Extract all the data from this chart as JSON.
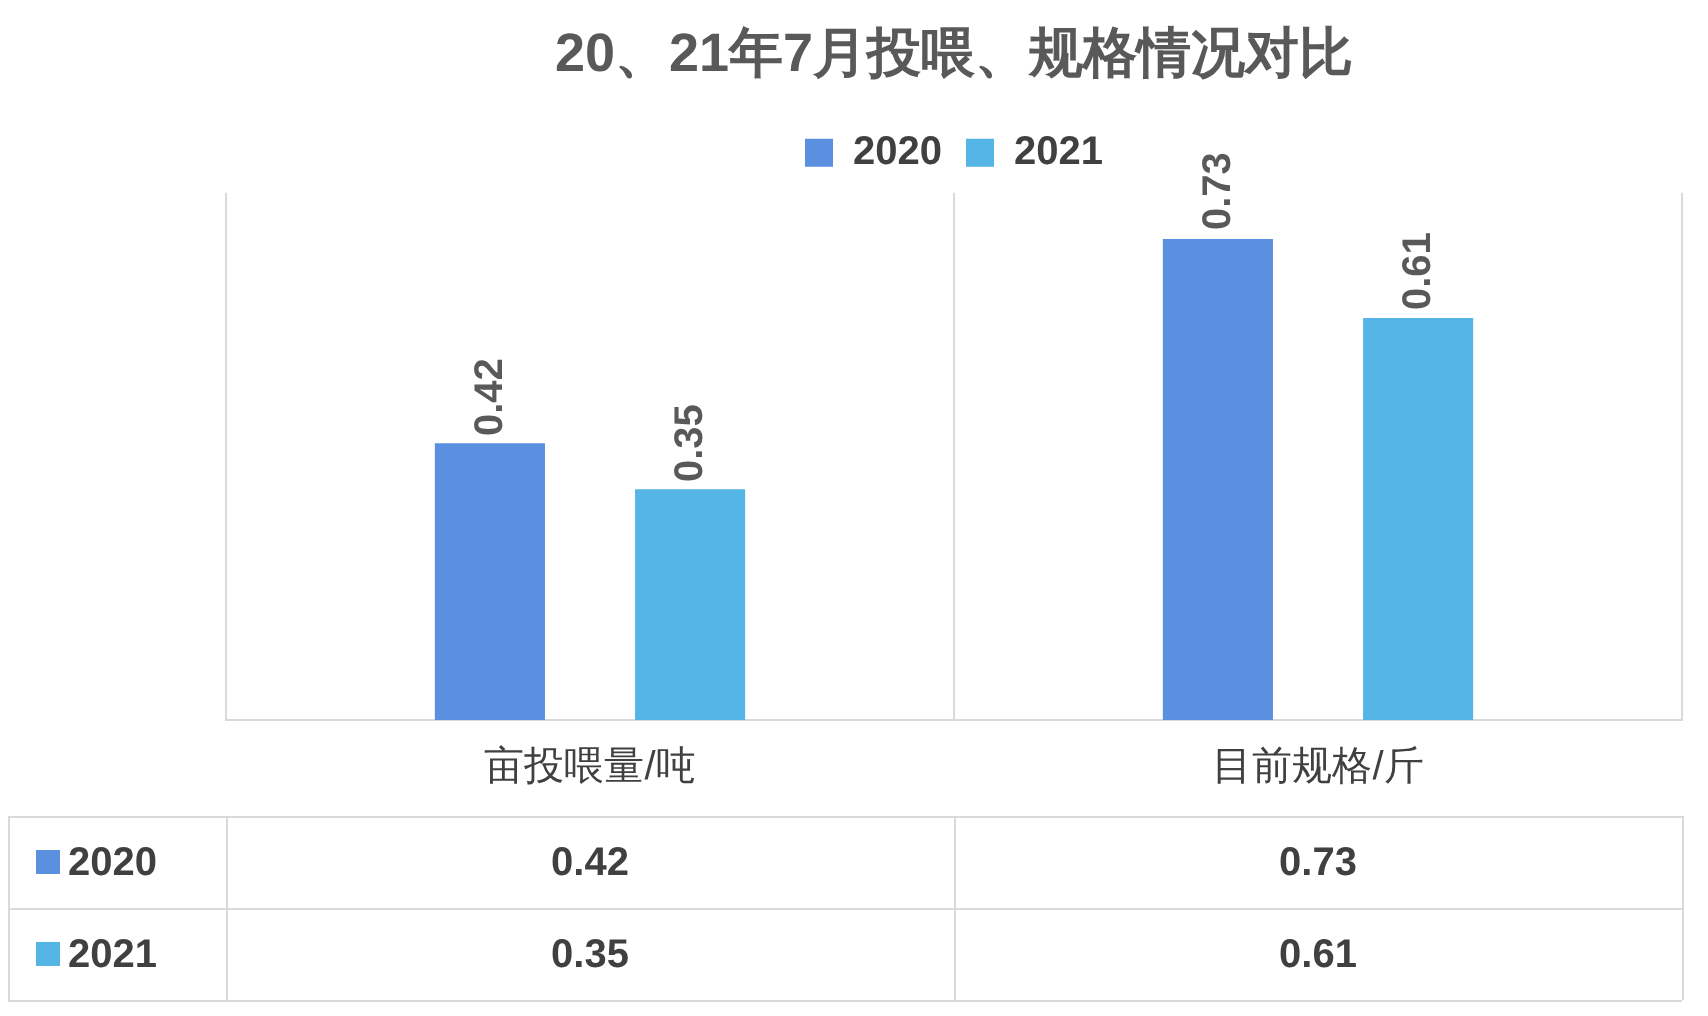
{
  "chart_data": {
    "type": "bar",
    "title": "20、21年7月投喂、规格情况对比",
    "categories": [
      "亩投喂量/吨",
      "目前规格/斤"
    ],
    "series": [
      {
        "name": "2020",
        "color": "#5b8fe0",
        "values": [
          0.42,
          0.73
        ],
        "value_labels": [
          "0.42",
          "0.73"
        ]
      },
      {
        "name": "2021",
        "color": "#55b5e6",
        "values": [
          0.35,
          0.61
        ],
        "value_labels": [
          "0.35",
          "0.61"
        ]
      }
    ],
    "annotations": [
      "0.42",
      "0.73",
      "0.35",
      "0.61"
    ],
    "legend": "top",
    "grid": "x"
  }
}
